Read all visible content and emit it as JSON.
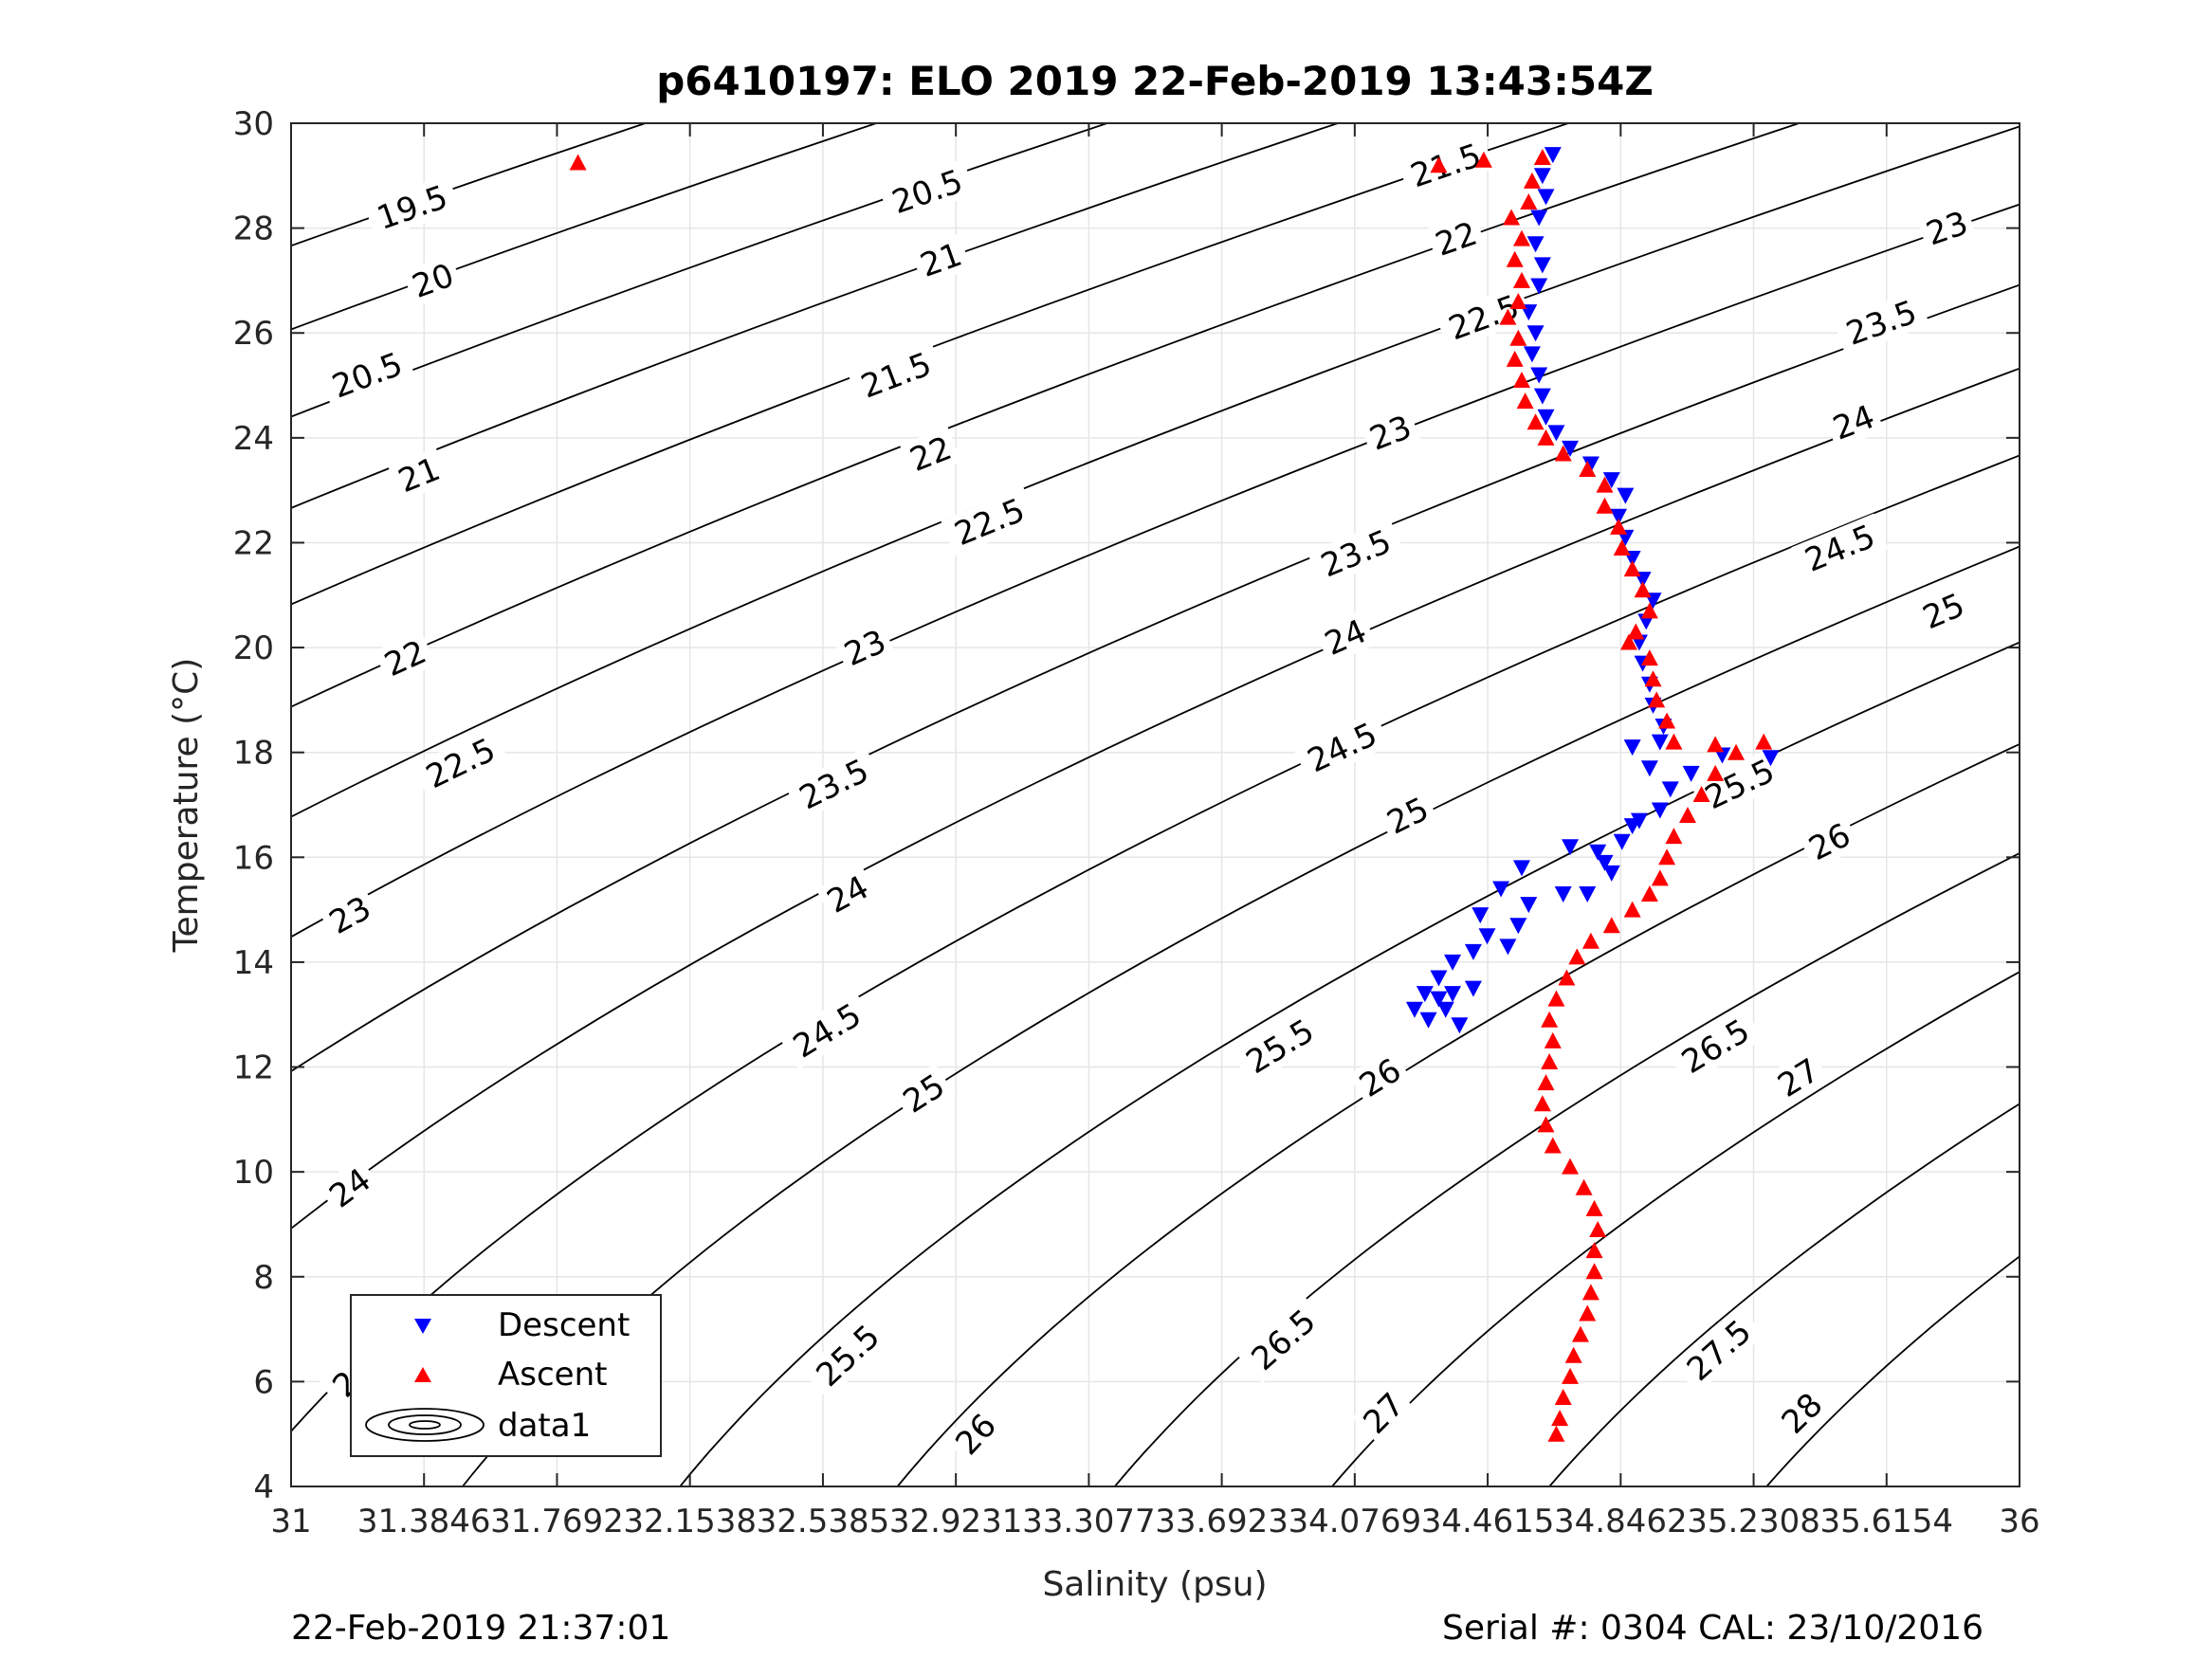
{
  "chart_data": {
    "type": "scatter",
    "title": "p6410197: ELO 2019 22-Feb-2019 13:43:54Z",
    "xlabel": "Salinity (psu)",
    "ylabel": "Temperature (°C)",
    "xlim": [
      31,
      36
    ],
    "ylim": [
      4,
      30
    ],
    "grid": true,
    "x_ticks": [
      31,
      31.3846,
      31.7692,
      32.1538,
      32.5385,
      32.9231,
      33.3077,
      33.6923,
      34.0769,
      34.4615,
      34.8462,
      35.2308,
      35.6154,
      36
    ],
    "x_tick_labels": [
      "31",
      "31.3846",
      "31.7692",
      "32.1538",
      "32.5385",
      "32.9231",
      "33.3077",
      "33.6923",
      "34.0769",
      "34.4615",
      "34.8462",
      "35.2308",
      "35.6154",
      "36"
    ],
    "y_ticks": [
      4,
      6,
      8,
      10,
      12,
      14,
      16,
      18,
      20,
      22,
      24,
      26,
      28,
      30
    ],
    "y_tick_labels": [
      "4",
      "6",
      "8",
      "10",
      "12",
      "14",
      "16",
      "18",
      "20",
      "22",
      "24",
      "26",
      "28",
      "30"
    ],
    "contour_levels": [
      19.5,
      20,
      20.5,
      21,
      21.5,
      22,
      22.5,
      23,
      23.5,
      24,
      24.5,
      25,
      25.5,
      26,
      26.5,
      27,
      27.5,
      28
    ],
    "contour_labels": [
      {
        "text": "19.5",
        "x": 31.35,
        "y": 28.4
      },
      {
        "text": "20",
        "x": 31.41,
        "y": 27.0
      },
      {
        "text": "20.5",
        "x": 31.22,
        "y": 25.2
      },
      {
        "text": "21",
        "x": 31.37,
        "y": 23.3
      },
      {
        "text": "22",
        "x": 31.33,
        "y": 19.8
      },
      {
        "text": "22.5",
        "x": 31.49,
        "y": 17.8
      },
      {
        "text": "23",
        "x": 31.17,
        "y": 14.9
      },
      {
        "text": "24",
        "x": 31.17,
        "y": 9.7
      },
      {
        "text": "24.5",
        "x": 31.21,
        "y": 6.3
      },
      {
        "text": "20.5",
        "x": 32.84,
        "y": 28.7
      },
      {
        "text": "21",
        "x": 32.88,
        "y": 27.4
      },
      {
        "text": "21.5",
        "x": 32.75,
        "y": 25.2
      },
      {
        "text": "22",
        "x": 32.85,
        "y": 23.7
      },
      {
        "text": "22.5",
        "x": 33.02,
        "y": 22.4
      },
      {
        "text": "23",
        "x": 32.66,
        "y": 20.0
      },
      {
        "text": "23.5",
        "x": 32.57,
        "y": 17.4
      },
      {
        "text": "24",
        "x": 32.61,
        "y": 15.3
      },
      {
        "text": "24.5",
        "x": 32.55,
        "y": 12.7
      },
      {
        "text": "25",
        "x": 32.83,
        "y": 11.5
      },
      {
        "text": "25.5",
        "x": 32.61,
        "y": 6.5
      },
      {
        "text": "26",
        "x": 32.98,
        "y": 5.0
      },
      {
        "text": "21.5",
        "x": 34.34,
        "y": 29.2
      },
      {
        "text": "22",
        "x": 34.37,
        "y": 27.8
      },
      {
        "text": "22.5",
        "x": 34.45,
        "y": 26.3
      },
      {
        "text": "23",
        "x": 34.18,
        "y": 24.1
      },
      {
        "text": "23.5",
        "x": 34.08,
        "y": 21.8
      },
      {
        "text": "24",
        "x": 34.05,
        "y": 20.2
      },
      {
        "text": "24.5",
        "x": 34.04,
        "y": 18.1
      },
      {
        "text": "25",
        "x": 34.23,
        "y": 16.8
      },
      {
        "text": "25.5",
        "x": 33.86,
        "y": 12.4
      },
      {
        "text": "26",
        "x": 34.15,
        "y": 11.8
      },
      {
        "text": "26.5",
        "x": 33.87,
        "y": 6.8
      },
      {
        "text": "27",
        "x": 34.16,
        "y": 5.4
      },
      {
        "text": "25.5",
        "x": 35.19,
        "y": 17.4
      },
      {
        "text": "26",
        "x": 35.45,
        "y": 16.3
      },
      {
        "text": "26.5",
        "x": 35.12,
        "y": 12.4
      },
      {
        "text": "27",
        "x": 35.36,
        "y": 11.8
      },
      {
        "text": "27.5",
        "x": 35.13,
        "y": 6.6
      },
      {
        "text": "28",
        "x": 35.37,
        "y": 5.4
      },
      {
        "text": "23",
        "x": 35.79,
        "y": 28.0
      },
      {
        "text": "23.5",
        "x": 35.6,
        "y": 26.2
      },
      {
        "text": "24",
        "x": 35.52,
        "y": 24.3
      },
      {
        "text": "24.5",
        "x": 35.48,
        "y": 21.9
      },
      {
        "text": "25",
        "x": 35.78,
        "y": 20.7
      }
    ],
    "series": [
      {
        "name": "Descent",
        "color": "#0000ff",
        "marker": "triangle-down",
        "points": [
          [
            34.65,
            29.4
          ],
          [
            34.62,
            29.0
          ],
          [
            34.63,
            28.6
          ],
          [
            34.61,
            28.2
          ],
          [
            34.6,
            27.7
          ],
          [
            34.62,
            27.3
          ],
          [
            34.61,
            26.9
          ],
          [
            34.58,
            26.4
          ],
          [
            34.6,
            26.0
          ],
          [
            34.59,
            25.6
          ],
          [
            34.61,
            25.2
          ],
          [
            34.62,
            24.8
          ],
          [
            34.63,
            24.4
          ],
          [
            34.66,
            24.1
          ],
          [
            34.7,
            23.8
          ],
          [
            34.76,
            23.5
          ],
          [
            34.82,
            23.2
          ],
          [
            34.86,
            22.9
          ],
          [
            34.84,
            22.5
          ],
          [
            34.86,
            22.1
          ],
          [
            34.88,
            21.7
          ],
          [
            34.91,
            21.3
          ],
          [
            34.94,
            20.9
          ],
          [
            34.92,
            20.5
          ],
          [
            34.9,
            20.1
          ],
          [
            34.91,
            19.7
          ],
          [
            34.93,
            19.3
          ],
          [
            34.94,
            18.9
          ],
          [
            34.97,
            18.5
          ],
          [
            34.96,
            18.2
          ],
          [
            35.14,
            17.95
          ],
          [
            35.28,
            17.9
          ],
          [
            35.05,
            17.6
          ],
          [
            34.99,
            17.3
          ],
          [
            34.96,
            16.9
          ],
          [
            34.88,
            16.6
          ],
          [
            34.85,
            16.3
          ],
          [
            34.78,
            16.1
          ],
          [
            34.82,
            15.7
          ],
          [
            34.75,
            15.3
          ],
          [
            34.68,
            15.3
          ],
          [
            34.56,
            15.8
          ],
          [
            34.5,
            15.4
          ],
          [
            34.44,
            14.9
          ],
          [
            34.46,
            14.5
          ],
          [
            34.42,
            14.2
          ],
          [
            34.36,
            14.0
          ],
          [
            34.32,
            13.7
          ],
          [
            34.28,
            13.4
          ],
          [
            34.25,
            13.1
          ],
          [
            34.29,
            12.9
          ],
          [
            34.34,
            13.1
          ],
          [
            34.38,
            12.8
          ],
          [
            34.36,
            13.4
          ],
          [
            34.42,
            13.5
          ],
          [
            34.32,
            13.3
          ],
          [
            34.55,
            14.7
          ],
          [
            34.52,
            14.3
          ],
          [
            34.58,
            15.1
          ],
          [
            34.7,
            16.2
          ],
          [
            34.8,
            15.9
          ],
          [
            34.9,
            16.7
          ],
          [
            34.88,
            18.1
          ],
          [
            34.93,
            17.7
          ]
        ]
      },
      {
        "name": "Ascent",
        "color": "#ff0000",
        "marker": "triangle-up",
        "points": [
          [
            31.83,
            29.25
          ],
          [
            34.32,
            29.2
          ],
          [
            34.45,
            29.3
          ],
          [
            34.62,
            29.35
          ],
          [
            34.59,
            28.9
          ],
          [
            34.58,
            28.5
          ],
          [
            34.53,
            28.2
          ],
          [
            34.56,
            27.8
          ],
          [
            34.54,
            27.4
          ],
          [
            34.56,
            27.0
          ],
          [
            34.55,
            26.6
          ],
          [
            34.52,
            26.3
          ],
          [
            34.55,
            25.9
          ],
          [
            34.54,
            25.5
          ],
          [
            34.56,
            25.1
          ],
          [
            34.57,
            24.7
          ],
          [
            34.6,
            24.3
          ],
          [
            34.63,
            24.0
          ],
          [
            34.68,
            23.7
          ],
          [
            34.75,
            23.4
          ],
          [
            34.8,
            23.1
          ],
          [
            34.8,
            22.7
          ],
          [
            34.84,
            22.3
          ],
          [
            34.85,
            21.9
          ],
          [
            34.88,
            21.5
          ],
          [
            34.91,
            21.1
          ],
          [
            34.93,
            20.7
          ],
          [
            34.89,
            20.3
          ],
          [
            34.87,
            20.1
          ],
          [
            34.93,
            19.8
          ],
          [
            34.94,
            19.4
          ],
          [
            34.95,
            19.0
          ],
          [
            34.98,
            18.6
          ],
          [
            35.0,
            18.2
          ],
          [
            35.12,
            18.15
          ],
          [
            35.26,
            18.2
          ],
          [
            35.18,
            18.0
          ],
          [
            35.12,
            17.6
          ],
          [
            35.08,
            17.2
          ],
          [
            35.04,
            16.8
          ],
          [
            35.0,
            16.4
          ],
          [
            34.98,
            16.0
          ],
          [
            34.96,
            15.6
          ],
          [
            34.93,
            15.3
          ],
          [
            34.88,
            15.0
          ],
          [
            34.82,
            14.7
          ],
          [
            34.76,
            14.4
          ],
          [
            34.72,
            14.1
          ],
          [
            34.69,
            13.7
          ],
          [
            34.66,
            13.3
          ],
          [
            34.64,
            12.9
          ],
          [
            34.65,
            12.5
          ],
          [
            34.64,
            12.1
          ],
          [
            34.63,
            11.7
          ],
          [
            34.62,
            11.3
          ],
          [
            34.63,
            10.9
          ],
          [
            34.65,
            10.5
          ],
          [
            34.7,
            10.1
          ],
          [
            34.74,
            9.7
          ],
          [
            34.77,
            9.3
          ],
          [
            34.78,
            8.9
          ],
          [
            34.77,
            8.5
          ],
          [
            34.77,
            8.1
          ],
          [
            34.76,
            7.7
          ],
          [
            34.75,
            7.3
          ],
          [
            34.73,
            6.9
          ],
          [
            34.71,
            6.5
          ],
          [
            34.7,
            6.1
          ],
          [
            34.68,
            5.7
          ],
          [
            34.67,
            5.3
          ],
          [
            34.66,
            5.0
          ]
        ]
      }
    ],
    "legend": {
      "placement": "bottom-left",
      "entries": [
        {
          "label": "Descent",
          "symbol": "triangle-down",
          "color": "#0000ff"
        },
        {
          "label": "Ascent",
          "symbol": "triangle-up",
          "color": "#ff0000"
        },
        {
          "label": "data1",
          "symbol": "contour",
          "color": "#000000"
        }
      ]
    }
  },
  "footer": {
    "left": "22-Feb-2019 21:37:01",
    "right": "Serial #: 0304  CAL: 23/10/2016"
  }
}
